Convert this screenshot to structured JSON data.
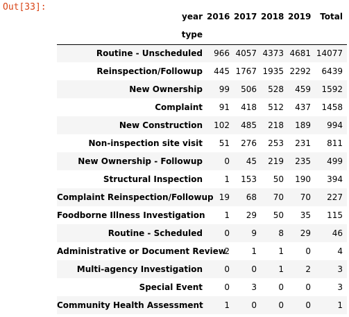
{
  "prompt": "Out[33]:",
  "table": {
    "columns_name": "year",
    "columns": [
      2016,
      2017,
      2018,
      2019,
      "Total"
    ],
    "index_name": "type",
    "rows": [
      {
        "label": "Routine - Unscheduled",
        "values": [
          966,
          4057,
          4373,
          4681,
          14077
        ]
      },
      {
        "label": "Reinspection/Followup",
        "values": [
          445,
          1767,
          1935,
          2292,
          6439
        ]
      },
      {
        "label": "New Ownership",
        "values": [
          99,
          506,
          528,
          459,
          1592
        ]
      },
      {
        "label": "Complaint",
        "values": [
          91,
          418,
          512,
          437,
          1458
        ]
      },
      {
        "label": "New Construction",
        "values": [
          102,
          485,
          218,
          189,
          994
        ]
      },
      {
        "label": "Non-inspection site visit",
        "values": [
          51,
          276,
          253,
          231,
          811
        ]
      },
      {
        "label": "New Ownership - Followup",
        "values": [
          0,
          45,
          219,
          235,
          499
        ]
      },
      {
        "label": "Structural Inspection",
        "values": [
          1,
          153,
          50,
          190,
          394
        ]
      },
      {
        "label": "Complaint Reinspection/Followup",
        "values": [
          19,
          68,
          70,
          70,
          227
        ]
      },
      {
        "label": "Foodborne Illness Investigation",
        "values": [
          1,
          29,
          50,
          35,
          115
        ]
      },
      {
        "label": "Routine - Scheduled",
        "values": [
          0,
          9,
          8,
          29,
          46
        ]
      },
      {
        "label": "Administrative or Document Review",
        "values": [
          2,
          1,
          1,
          0,
          4
        ]
      },
      {
        "label": "Multi-agency Investigation",
        "values": [
          0,
          0,
          1,
          2,
          3
        ]
      },
      {
        "label": "Special Event",
        "values": [
          0,
          3,
          0,
          0,
          3
        ]
      },
      {
        "label": "Community Health Assessment",
        "values": [
          1,
          0,
          0,
          0,
          1
        ]
      }
    ]
  }
}
